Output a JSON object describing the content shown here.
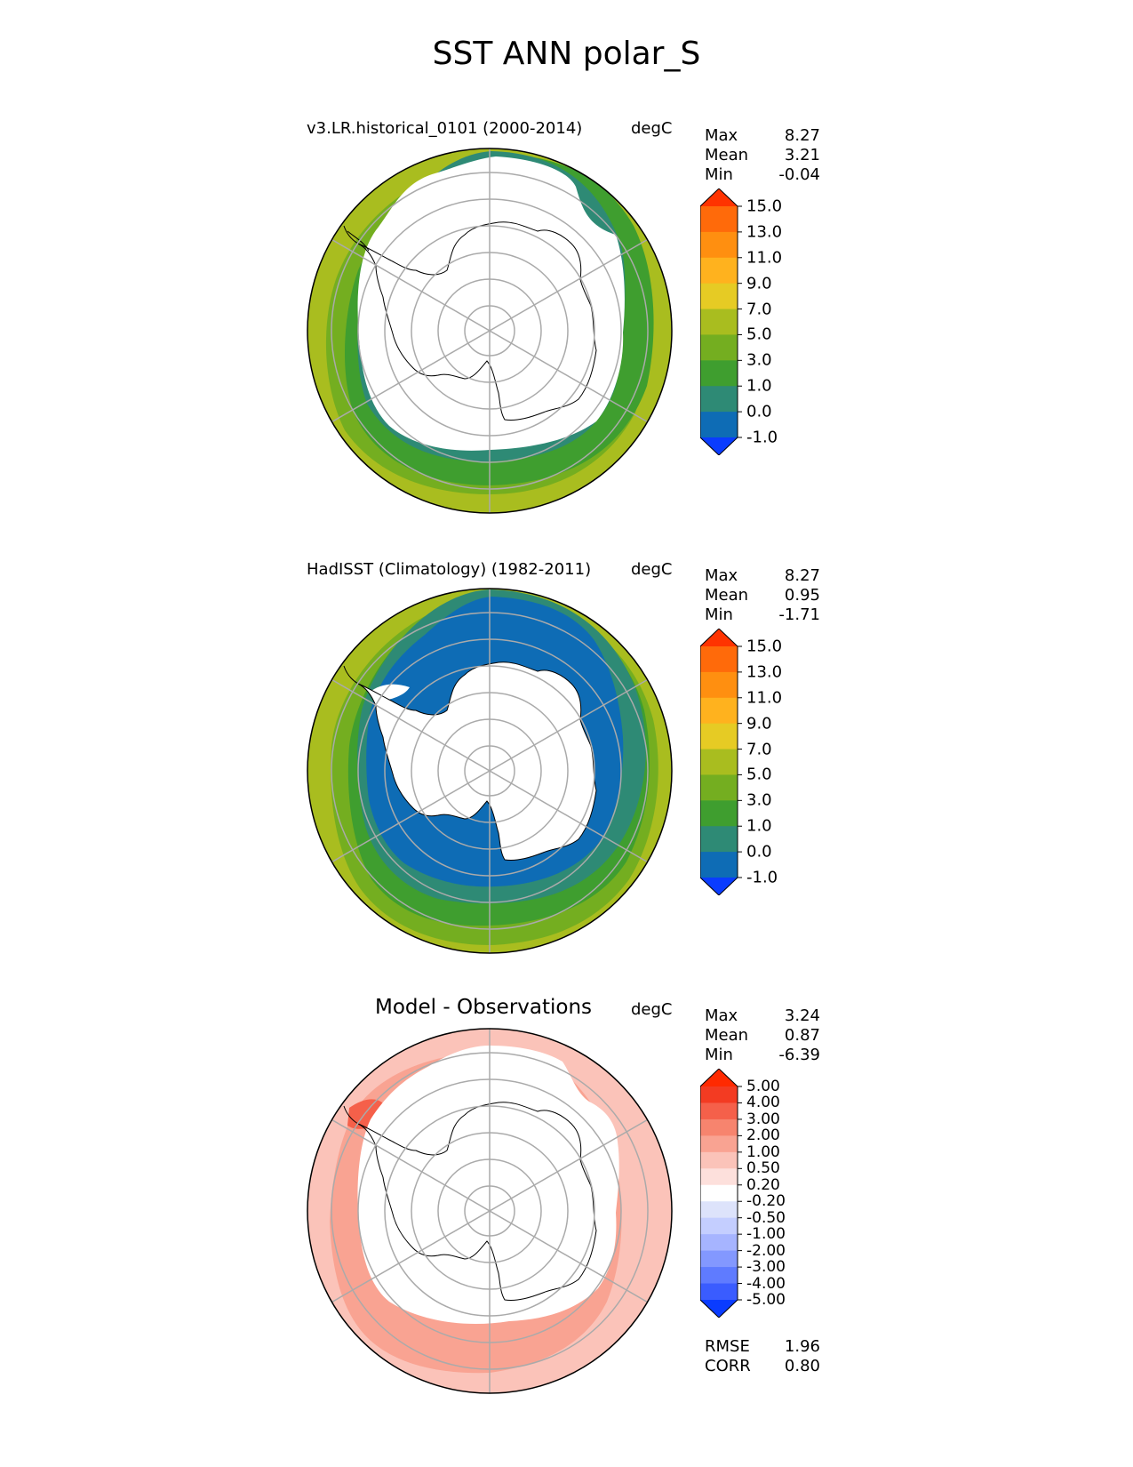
{
  "title": "SST ANN polar_S",
  "panels": [
    {
      "title": "v3.LR.historical_0101 (2000-2014)",
      "units": "degC",
      "stats": [
        {
          "label": "Max",
          "value": "8.27"
        },
        {
          "label": "Mean",
          "value": "3.21"
        },
        {
          "label": "Min",
          "value": "-0.04"
        }
      ],
      "colorbar": {
        "levels": [
          "-1.0",
          "0.0",
          "1.0",
          "3.0",
          "5.0",
          "7.0",
          "9.0",
          "11.0",
          "13.0",
          "15.0"
        ],
        "colors": [
          "#0a3cff",
          "#0e6cb5",
          "#2e8a75",
          "#3f9e2f",
          "#74ae20",
          "#a9bd1f",
          "#e6cb24",
          "#ffb21e",
          "#ff8f10",
          "#ff6a0a",
          "#ff3300"
        ]
      }
    },
    {
      "title": "HadISST (Climatology) (1982-2011)",
      "units": "degC",
      "stats": [
        {
          "label": "Max",
          "value": "8.27"
        },
        {
          "label": "Mean",
          "value": "0.95"
        },
        {
          "label": "Min",
          "value": "-1.71"
        }
      ],
      "colorbar": {
        "levels": [
          "-1.0",
          "0.0",
          "1.0",
          "3.0",
          "5.0",
          "7.0",
          "9.0",
          "11.0",
          "13.0",
          "15.0"
        ],
        "colors": [
          "#0a3cff",
          "#0e6cb5",
          "#2e8a75",
          "#3f9e2f",
          "#74ae20",
          "#a9bd1f",
          "#e6cb24",
          "#ffb21e",
          "#ff8f10",
          "#ff6a0a",
          "#ff3300"
        ]
      }
    },
    {
      "title": "Model - Observations",
      "units": "degC",
      "stats": [
        {
          "label": "Max",
          "value": "3.24"
        },
        {
          "label": "Mean",
          "value": "0.87"
        },
        {
          "label": "Min",
          "value": "-6.39"
        }
      ],
      "extra_stats": [
        {
          "label": "RMSE",
          "value": "1.96"
        },
        {
          "label": "CORR",
          "value": "0.80"
        }
      ],
      "colorbar": {
        "levels": [
          "-5.00",
          "-4.00",
          "-3.00",
          "-2.00",
          "-1.00",
          "-0.50",
          "-0.20",
          "0.20",
          "0.50",
          "1.00",
          "2.00",
          "3.00",
          "4.00",
          "5.00"
        ],
        "colors": [
          "#0a3cff",
          "#3a5cff",
          "#5f7bff",
          "#8398ff",
          "#a6b4ff",
          "#c4ceff",
          "#dde3fb",
          "#ffffff",
          "#fde0dc",
          "#fbc3b9",
          "#f9a392",
          "#f7846e",
          "#f5604a",
          "#f33b22",
          "#ff2a00"
        ]
      }
    }
  ]
}
